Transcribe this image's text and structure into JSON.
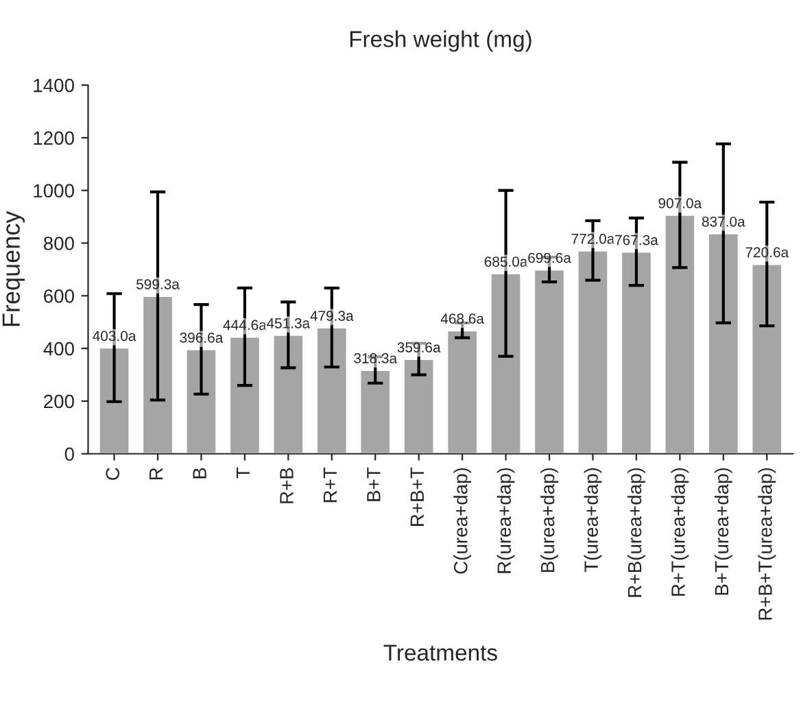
{
  "chart_data": {
    "type": "bar",
    "title": "Fresh weight (mg)",
    "xlabel": "Treatments",
    "ylabel": "Frequency",
    "categories": [
      "C",
      "R",
      "B",
      "T",
      "R+B",
      "R+T",
      "B+T",
      "R+B+T",
      "C(urea+dap)",
      "R(urea+dap)",
      "B(urea+dap)",
      "T(urea+dap)",
      "R+B(urea+dap)",
      "R+T(urea+dap)",
      "B+T(urea+dap)",
      "R+B+T(urea+dap)"
    ],
    "values": [
      403.0,
      599.3,
      396.6,
      444.6,
      451.3,
      479.3,
      318.3,
      359.6,
      468.6,
      685.0,
      699.6,
      772.0,
      767.3,
      907.0,
      837.0,
      720.6
    ],
    "errors": [
      205,
      395,
      170,
      185,
      125,
      150,
      50,
      60,
      28,
      315,
      47,
      113,
      128,
      200,
      340,
      235
    ],
    "value_labels": [
      "403.0a",
      "599.3a",
      "396.6a",
      "444.6a",
      "451.3a",
      "479.3a",
      "318.3a",
      "359.6a",
      "468.6a",
      "685.0a",
      "699.6a",
      "772.0a",
      "767.3a",
      "907.0a",
      "837.0a",
      "720.6a"
    ],
    "color": "#a6a5a6",
    "ylim": [
      0,
      1400
    ],
    "yticks": [
      0,
      200,
      400,
      600,
      800,
      1000,
      1200,
      1400
    ],
    "grid": false,
    "legend": false
  }
}
